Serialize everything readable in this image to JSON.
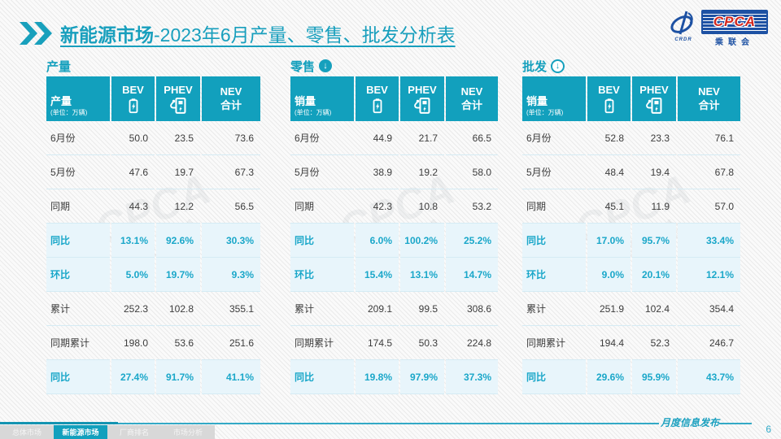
{
  "title": {
    "highlight": "新能源市场",
    "rest": "-2023年6月产量、零售、批发分析表"
  },
  "logo": {
    "cpca": "CPCA",
    "org": "乘联会",
    "swirl_caption": "CRDR"
  },
  "watermark": {
    "line1": "CPCA",
    "line2": "乘联会"
  },
  "tables": [
    {
      "section_label": "产量",
      "arrow": "none",
      "header": {
        "measure": "产量",
        "unit": "(单位：万辆)",
        "col_bev": "BEV",
        "col_phev": "PHEV",
        "col_nev_1": "NEV",
        "col_nev_2": "合计"
      },
      "rows": [
        {
          "label": "6月份",
          "values": [
            "50.0",
            "23.5",
            "73.6"
          ],
          "highlight": false
        },
        {
          "label": "5月份",
          "values": [
            "47.6",
            "19.7",
            "67.3"
          ],
          "highlight": false
        },
        {
          "label": "同期",
          "values": [
            "44.3",
            "12.2",
            "56.5"
          ],
          "highlight": false
        },
        {
          "label": "同比",
          "values": [
            "13.1%",
            "92.6%",
            "30.3%"
          ],
          "highlight": true
        },
        {
          "label": "环比",
          "values": [
            "5.0%",
            "19.7%",
            "9.3%"
          ],
          "highlight": true
        },
        {
          "label": "累计",
          "values": [
            "252.3",
            "102.8",
            "355.1"
          ],
          "highlight": false
        },
        {
          "label": "同期累计",
          "values": [
            "198.0",
            "53.6",
            "251.6"
          ],
          "highlight": false
        },
        {
          "label": "同比",
          "values": [
            "27.4%",
            "91.7%",
            "41.1%"
          ],
          "highlight": true
        }
      ]
    },
    {
      "section_label": "零售",
      "arrow": "solid",
      "header": {
        "measure": "销量",
        "unit": "(单位：万辆)",
        "col_bev": "BEV",
        "col_phev": "PHEV",
        "col_nev_1": "NEV",
        "col_nev_2": "合计"
      },
      "rows": [
        {
          "label": "6月份",
          "values": [
            "44.9",
            "21.7",
            "66.5"
          ],
          "highlight": false
        },
        {
          "label": "5月份",
          "values": [
            "38.9",
            "19.2",
            "58.0"
          ],
          "highlight": false
        },
        {
          "label": "同期",
          "values": [
            "42.3",
            "10.8",
            "53.2"
          ],
          "highlight": false
        },
        {
          "label": "同比",
          "values": [
            "6.0%",
            "100.2%",
            "25.2%"
          ],
          "highlight": true
        },
        {
          "label": "环比",
          "values": [
            "15.4%",
            "13.1%",
            "14.7%"
          ],
          "highlight": true
        },
        {
          "label": "累计",
          "values": [
            "209.1",
            "99.5",
            "308.6"
          ],
          "highlight": false
        },
        {
          "label": "同期累计",
          "values": [
            "174.5",
            "50.3",
            "224.8"
          ],
          "highlight": false
        },
        {
          "label": "同比",
          "values": [
            "19.8%",
            "97.9%",
            "37.3%"
          ],
          "highlight": true
        }
      ]
    },
    {
      "section_label": "批发",
      "arrow": "outline",
      "header": {
        "measure": "销量",
        "unit": "(单位：万辆)",
        "col_bev": "BEV",
        "col_phev": "PHEV",
        "col_nev_1": "NEV",
        "col_nev_2": "合计"
      },
      "rows": [
        {
          "label": "6月份",
          "values": [
            "52.8",
            "23.3",
            "76.1"
          ],
          "highlight": false
        },
        {
          "label": "5月份",
          "values": [
            "48.4",
            "19.4",
            "67.8"
          ],
          "highlight": false
        },
        {
          "label": "同期",
          "values": [
            "45.1",
            "11.9",
            "57.0"
          ],
          "highlight": false
        },
        {
          "label": "同比",
          "values": [
            "17.0%",
            "95.7%",
            "33.4%"
          ],
          "highlight": true
        },
        {
          "label": "环比",
          "values": [
            "9.0%",
            "20.1%",
            "12.1%"
          ],
          "highlight": true
        },
        {
          "label": "累计",
          "values": [
            "251.9",
            "102.4",
            "354.4"
          ],
          "highlight": false
        },
        {
          "label": "同期累计",
          "values": [
            "194.4",
            "52.3",
            "246.7"
          ],
          "highlight": false
        },
        {
          "label": "同比",
          "values": [
            "29.6%",
            "95.9%",
            "43.7%"
          ],
          "highlight": true
        }
      ]
    }
  ],
  "footer": {
    "tabs": [
      {
        "label": "总体市场",
        "active": false
      },
      {
        "label": "新能源市场",
        "active": true
      },
      {
        "label": "厂商排名",
        "active": false
      },
      {
        "label": "市场分析",
        "active": false
      }
    ],
    "publish_label": "月度信息发布",
    "page_number": "6"
  },
  "colors": {
    "teal": "#12a0bd",
    "teal_text": "#1aa7c9",
    "highlight_bg": "#e8f5fb",
    "logo_blue": "#1d51a3",
    "cpca_red": "#d5281e"
  }
}
